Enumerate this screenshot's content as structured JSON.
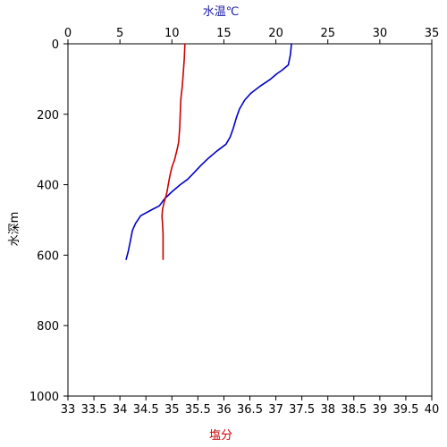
{
  "chart_data": {
    "type": "line",
    "title": "",
    "axes": {
      "top": {
        "label": "水温℃",
        "color": "#1a1aa8",
        "range": [
          0,
          35
        ],
        "ticks": [
          "0",
          "5",
          "10",
          "15",
          "20",
          "25",
          "30",
          "35"
        ]
      },
      "bottom": {
        "label": "塩分",
        "color": "#cc0000",
        "range": [
          33,
          40
        ],
        "ticks": [
          "33",
          "33.5",
          "34",
          "34.5",
          "35",
          "35.5",
          "36",
          "36.5",
          "37",
          "37.5",
          "38",
          "38.5",
          "39",
          "39.5",
          "40"
        ]
      },
      "left": {
        "label": "水深m",
        "range": [
          0,
          1000
        ],
        "inverted": true,
        "ticks": [
          "0",
          "200",
          "400",
          "600",
          "800",
          "1000"
        ]
      }
    },
    "grid": false,
    "series": [
      {
        "axis": "top",
        "color": "#0000c8",
        "points": [
          [
            21.5,
            0
          ],
          [
            21.4,
            30
          ],
          [
            21.2,
            60
          ],
          [
            20.6,
            75
          ],
          [
            20.1,
            85
          ],
          [
            19.5,
            100
          ],
          [
            18.5,
            120
          ],
          [
            17.6,
            140
          ],
          [
            17.0,
            160
          ],
          [
            16.5,
            185
          ],
          [
            16.2,
            210
          ],
          [
            15.9,
            240
          ],
          [
            15.6,
            265
          ],
          [
            15.2,
            285
          ],
          [
            14.3,
            305
          ],
          [
            13.5,
            325
          ],
          [
            12.8,
            345
          ],
          [
            12.0,
            370
          ],
          [
            11.5,
            385
          ],
          [
            10.8,
            400
          ],
          [
            10.0,
            420
          ],
          [
            9.3,
            440
          ],
          [
            8.8,
            460
          ],
          [
            8.0,
            472
          ],
          [
            7.0,
            488
          ],
          [
            6.5,
            510
          ],
          [
            6.2,
            530
          ],
          [
            6.0,
            560
          ],
          [
            5.8,
            590
          ],
          [
            5.6,
            612
          ]
        ]
      },
      {
        "axis": "bottom",
        "color": "#cc0000",
        "points": [
          [
            35.25,
            0
          ],
          [
            35.24,
            40
          ],
          [
            35.22,
            80
          ],
          [
            35.2,
            120
          ],
          [
            35.17,
            160
          ],
          [
            35.16,
            200
          ],
          [
            35.15,
            240
          ],
          [
            35.13,
            280
          ],
          [
            35.1,
            300
          ],
          [
            35.05,
            330
          ],
          [
            35.0,
            350
          ],
          [
            34.96,
            375
          ],
          [
            34.93,
            400
          ],
          [
            34.9,
            425
          ],
          [
            34.85,
            450
          ],
          [
            34.82,
            470
          ],
          [
            34.81,
            490
          ],
          [
            34.82,
            510
          ],
          [
            34.83,
            540
          ],
          [
            34.83,
            580
          ],
          [
            34.83,
            612
          ]
        ]
      }
    ]
  }
}
